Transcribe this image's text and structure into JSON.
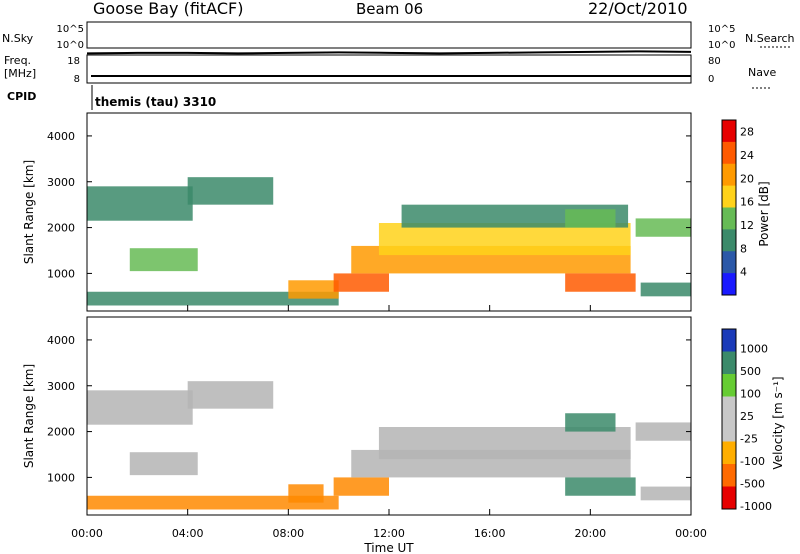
{
  "header": {
    "station": "Goose Bay (fitACF)",
    "beam": "Beam 06",
    "date": "22/Oct/2010"
  },
  "strip_labels": {
    "nsky": "N.Sky",
    "nsearch": "N.Search",
    "freq_line1": "Freq.",
    "freq_line2": "[MHz]",
    "nave": "Nave",
    "cpid": "CPID",
    "cpid_value": "themis (tau) 3310",
    "noise_ticks_left": [
      "10^5",
      "10^0"
    ],
    "noise_ticks_right": [
      "10^5",
      "10^0"
    ],
    "freq_ticks_left": [
      "18",
      "8"
    ],
    "nave_ticks_right": [
      "80",
      "0"
    ]
  },
  "colors": {
    "power_scale": [
      "#1a1aff",
      "#2b58a8",
      "#3b8a6a",
      "#66bb55",
      "#ffd21a",
      "#ff9a00",
      "#ff5a00",
      "#e60000"
    ],
    "velocity_scale": [
      "#e60000",
      "#ff6a00",
      "#ffae00",
      "#c8c8c8",
      "#c8c8c8",
      "#66cc33",
      "#3b8a6a",
      "#1a3ab8"
    ],
    "ground_scatter": "#b4b4b4"
  },
  "chart_data": [
    {
      "type": "line",
      "panel": "noise",
      "series": [
        {
          "name": "N.Sky",
          "values_log10": [
            0.5,
            0.6,
            0.6,
            0.5,
            0.6,
            0.7,
            0.6,
            0.5,
            0.6,
            0.7,
            0.8,
            0.9,
            0.8
          ]
        },
        {
          "name": "N.Search",
          "values_log10": [
            0.7,
            0.7,
            0.8,
            0.7,
            0.8,
            0.8,
            0.7,
            0.8,
            0.8,
            0.9,
            1.0,
            1.1,
            1.0
          ]
        }
      ],
      "ylim_log10": [
        0,
        5
      ]
    },
    {
      "type": "line",
      "panel": "frequency_nave",
      "series": [
        {
          "name": "Freq.",
          "values": [
            10.5,
            10.5,
            10.5,
            10.5,
            10.5,
            10.5,
            10.5,
            10.5,
            10.5,
            10.5,
            10.5,
            10.5,
            10.5
          ]
        }
      ],
      "ylim": [
        8,
        18
      ]
    },
    {
      "type": "heatmap",
      "panel": "power",
      "xlabel": "",
      "ylabel": "Slant Range [km]",
      "xlim_hours": [
        0,
        24
      ],
      "ylim": [
        180,
        4500
      ],
      "yticks": [
        "1000",
        "2000",
        "3000",
        "4000"
      ],
      "colorbar": {
        "label": "Power [dB]",
        "ticks": [
          "4",
          "8",
          "12",
          "16",
          "20",
          "24",
          "28"
        ],
        "range": [
          0,
          30
        ]
      },
      "regions": [
        {
          "t0": 0.0,
          "t1": 4.2,
          "r0": 2150,
          "r1": 2900,
          "value": 8
        },
        {
          "t0": 4.0,
          "t1": 7.4,
          "r0": 2500,
          "r1": 3100,
          "value": 10
        },
        {
          "t0": 1.7,
          "t1": 4.4,
          "r0": 1050,
          "r1": 1550,
          "value": 12
        },
        {
          "t0": 0.0,
          "t1": 10.0,
          "r0": 300,
          "r1": 600,
          "value": 10
        },
        {
          "t0": 8.0,
          "t1": 10.0,
          "r0": 450,
          "r1": 850,
          "value": 20
        },
        {
          "t0": 9.8,
          "t1": 12.0,
          "r0": 600,
          "r1": 1000,
          "value": 24
        },
        {
          "t0": 10.5,
          "t1": 21.6,
          "r0": 1000,
          "r1": 1600,
          "value": 22
        },
        {
          "t0": 11.6,
          "t1": 21.6,
          "r0": 1400,
          "r1": 2100,
          "value": 18
        },
        {
          "t0": 12.5,
          "t1": 21.5,
          "r0": 2000,
          "r1": 2500,
          "value": 8
        },
        {
          "t0": 19.0,
          "t1": 21.8,
          "r0": 600,
          "r1": 1000,
          "value": 26
        },
        {
          "t0": 19.0,
          "t1": 21.0,
          "r0": 2000,
          "r1": 2400,
          "value": 14
        },
        {
          "t0": 21.8,
          "t1": 24.0,
          "r0": 1800,
          "r1": 2200,
          "value": 12
        },
        {
          "t0": 22.0,
          "t1": 24.0,
          "r0": 500,
          "r1": 800,
          "value": 8
        }
      ]
    },
    {
      "type": "heatmap",
      "panel": "velocity",
      "xlabel": "Time UT",
      "ylabel": "Slant Range [km]",
      "xlim_hours": [
        0,
        24
      ],
      "xticks": [
        "00:00",
        "04:00",
        "08:00",
        "12:00",
        "16:00",
        "20:00",
        "00:00"
      ],
      "ylim": [
        180,
        4500
      ],
      "yticks": [
        "1000",
        "2000",
        "3000",
        "4000"
      ],
      "colorbar": {
        "label": "Velocity [m s⁻¹]",
        "ticks": [
          "1000",
          "500",
          "100",
          "25",
          "-25",
          "-100",
          "-500",
          "-1000"
        ]
      },
      "regions": [
        {
          "t0": 0.0,
          "t1": 4.2,
          "r0": 2150,
          "r1": 2900,
          "value": 0
        },
        {
          "t0": 4.0,
          "t1": 7.4,
          "r0": 2500,
          "r1": 3100,
          "value": 0
        },
        {
          "t0": 1.7,
          "t1": 4.4,
          "r0": 1050,
          "r1": 1550,
          "value": 0
        },
        {
          "t0": 0.0,
          "t1": 10.0,
          "r0": 300,
          "r1": 600,
          "value": -100
        },
        {
          "t0": 8.0,
          "t1": 9.4,
          "r0": 450,
          "r1": 850,
          "value": -100
        },
        {
          "t0": 9.8,
          "t1": 12.0,
          "r0": 600,
          "r1": 1000,
          "value": -100
        },
        {
          "t0": 10.5,
          "t1": 21.6,
          "r0": 1000,
          "r1": 1600,
          "value": 0
        },
        {
          "t0": 11.6,
          "t1": 21.6,
          "r0": 1400,
          "r1": 2100,
          "value": 0
        },
        {
          "t0": 19.0,
          "t1": 21.8,
          "r0": 600,
          "r1": 1000,
          "value": 100
        },
        {
          "t0": 19.0,
          "t1": 21.0,
          "r0": 2000,
          "r1": 2400,
          "value": 100
        },
        {
          "t0": 21.8,
          "t1": 24.0,
          "r0": 1800,
          "r1": 2200,
          "value": 0
        },
        {
          "t0": 22.0,
          "t1": 24.0,
          "r0": 500,
          "r1": 800,
          "value": 0
        }
      ]
    }
  ]
}
